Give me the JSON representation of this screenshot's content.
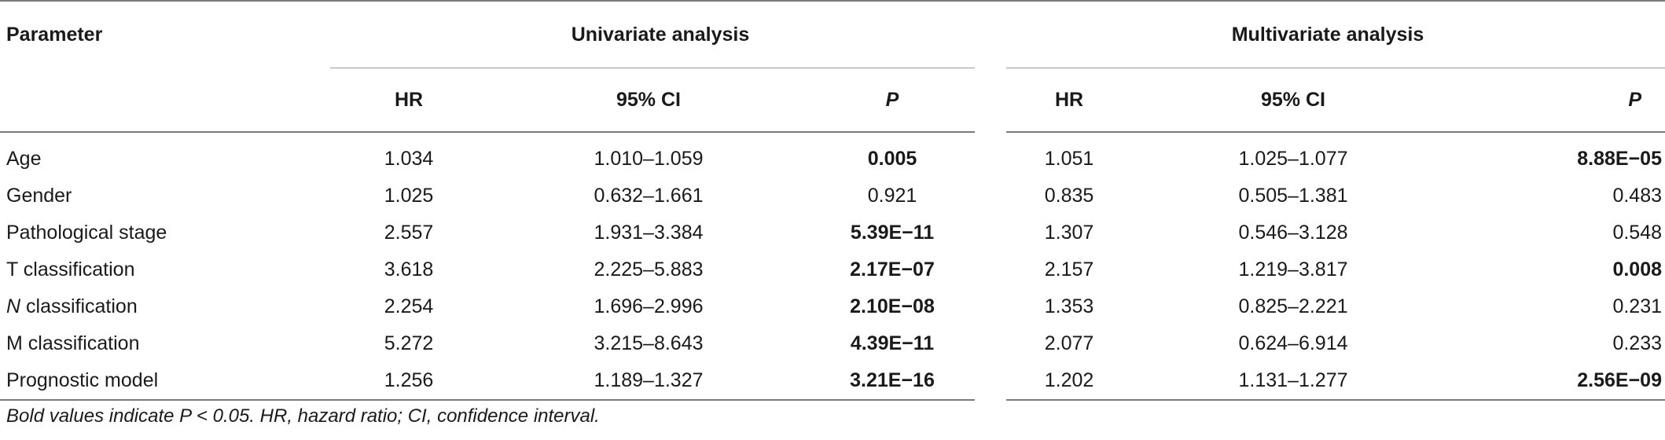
{
  "table": {
    "header": {
      "parameter": "Parameter",
      "univariate": "Univariate analysis",
      "multivariate": "Multivariate analysis",
      "hr": "HR",
      "ci": "95% CI",
      "p": "P"
    },
    "rows": [
      {
        "param": "Age",
        "param_italic_prefix": "",
        "u_hr": "1.034",
        "u_ci": "1.010–1.059",
        "u_p": "0.005",
        "u_p_bold": true,
        "m_hr": "1.051",
        "m_ci": "1.025–1.077",
        "m_p": "8.88E−05",
        "m_p_bold": true
      },
      {
        "param": "Gender",
        "param_italic_prefix": "",
        "u_hr": "1.025",
        "u_ci": "0.632–1.661",
        "u_p": "0.921",
        "u_p_bold": false,
        "m_hr": "0.835",
        "m_ci": "0.505–1.381",
        "m_p": "0.483",
        "m_p_bold": false
      },
      {
        "param": "Pathological stage",
        "param_italic_prefix": "",
        "u_hr": "2.557",
        "u_ci": "1.931–3.384",
        "u_p": "5.39E−11",
        "u_p_bold": true,
        "m_hr": "1.307",
        "m_ci": "0.546–3.128",
        "m_p": "0.548",
        "m_p_bold": false
      },
      {
        "param": "T classification",
        "param_italic_prefix": "",
        "u_hr": "3.618",
        "u_ci": "2.225–5.883",
        "u_p": "2.17E−07",
        "u_p_bold": true,
        "m_hr": "2.157",
        "m_ci": "1.219–3.817",
        "m_p": "0.008",
        "m_p_bold": true
      },
      {
        "param": " classification",
        "param_italic_prefix": "N",
        "u_hr": "2.254",
        "u_ci": "1.696–2.996",
        "u_p": "2.10E−08",
        "u_p_bold": true,
        "m_hr": "1.353",
        "m_ci": "0.825–2.221",
        "m_p": "0.231",
        "m_p_bold": false
      },
      {
        "param": "M classification",
        "param_italic_prefix": "",
        "u_hr": "5.272",
        "u_ci": "3.215–8.643",
        "u_p": "4.39E−11",
        "u_p_bold": true,
        "m_hr": "2.077",
        "m_ci": "0.624–6.914",
        "m_p": "0.233",
        "m_p_bold": false
      },
      {
        "param": "Prognostic model",
        "param_italic_prefix": "",
        "u_hr": "1.256",
        "u_ci": "1.189–1.327",
        "u_p": "3.21E−16",
        "u_p_bold": true,
        "m_hr": "1.202",
        "m_ci": "1.131–1.277",
        "m_p": "2.56E−09",
        "m_p_bold": true
      }
    ]
  },
  "footnote": "Bold values indicate P < 0.05. HR, hazard ratio; CI, confidence interval."
}
